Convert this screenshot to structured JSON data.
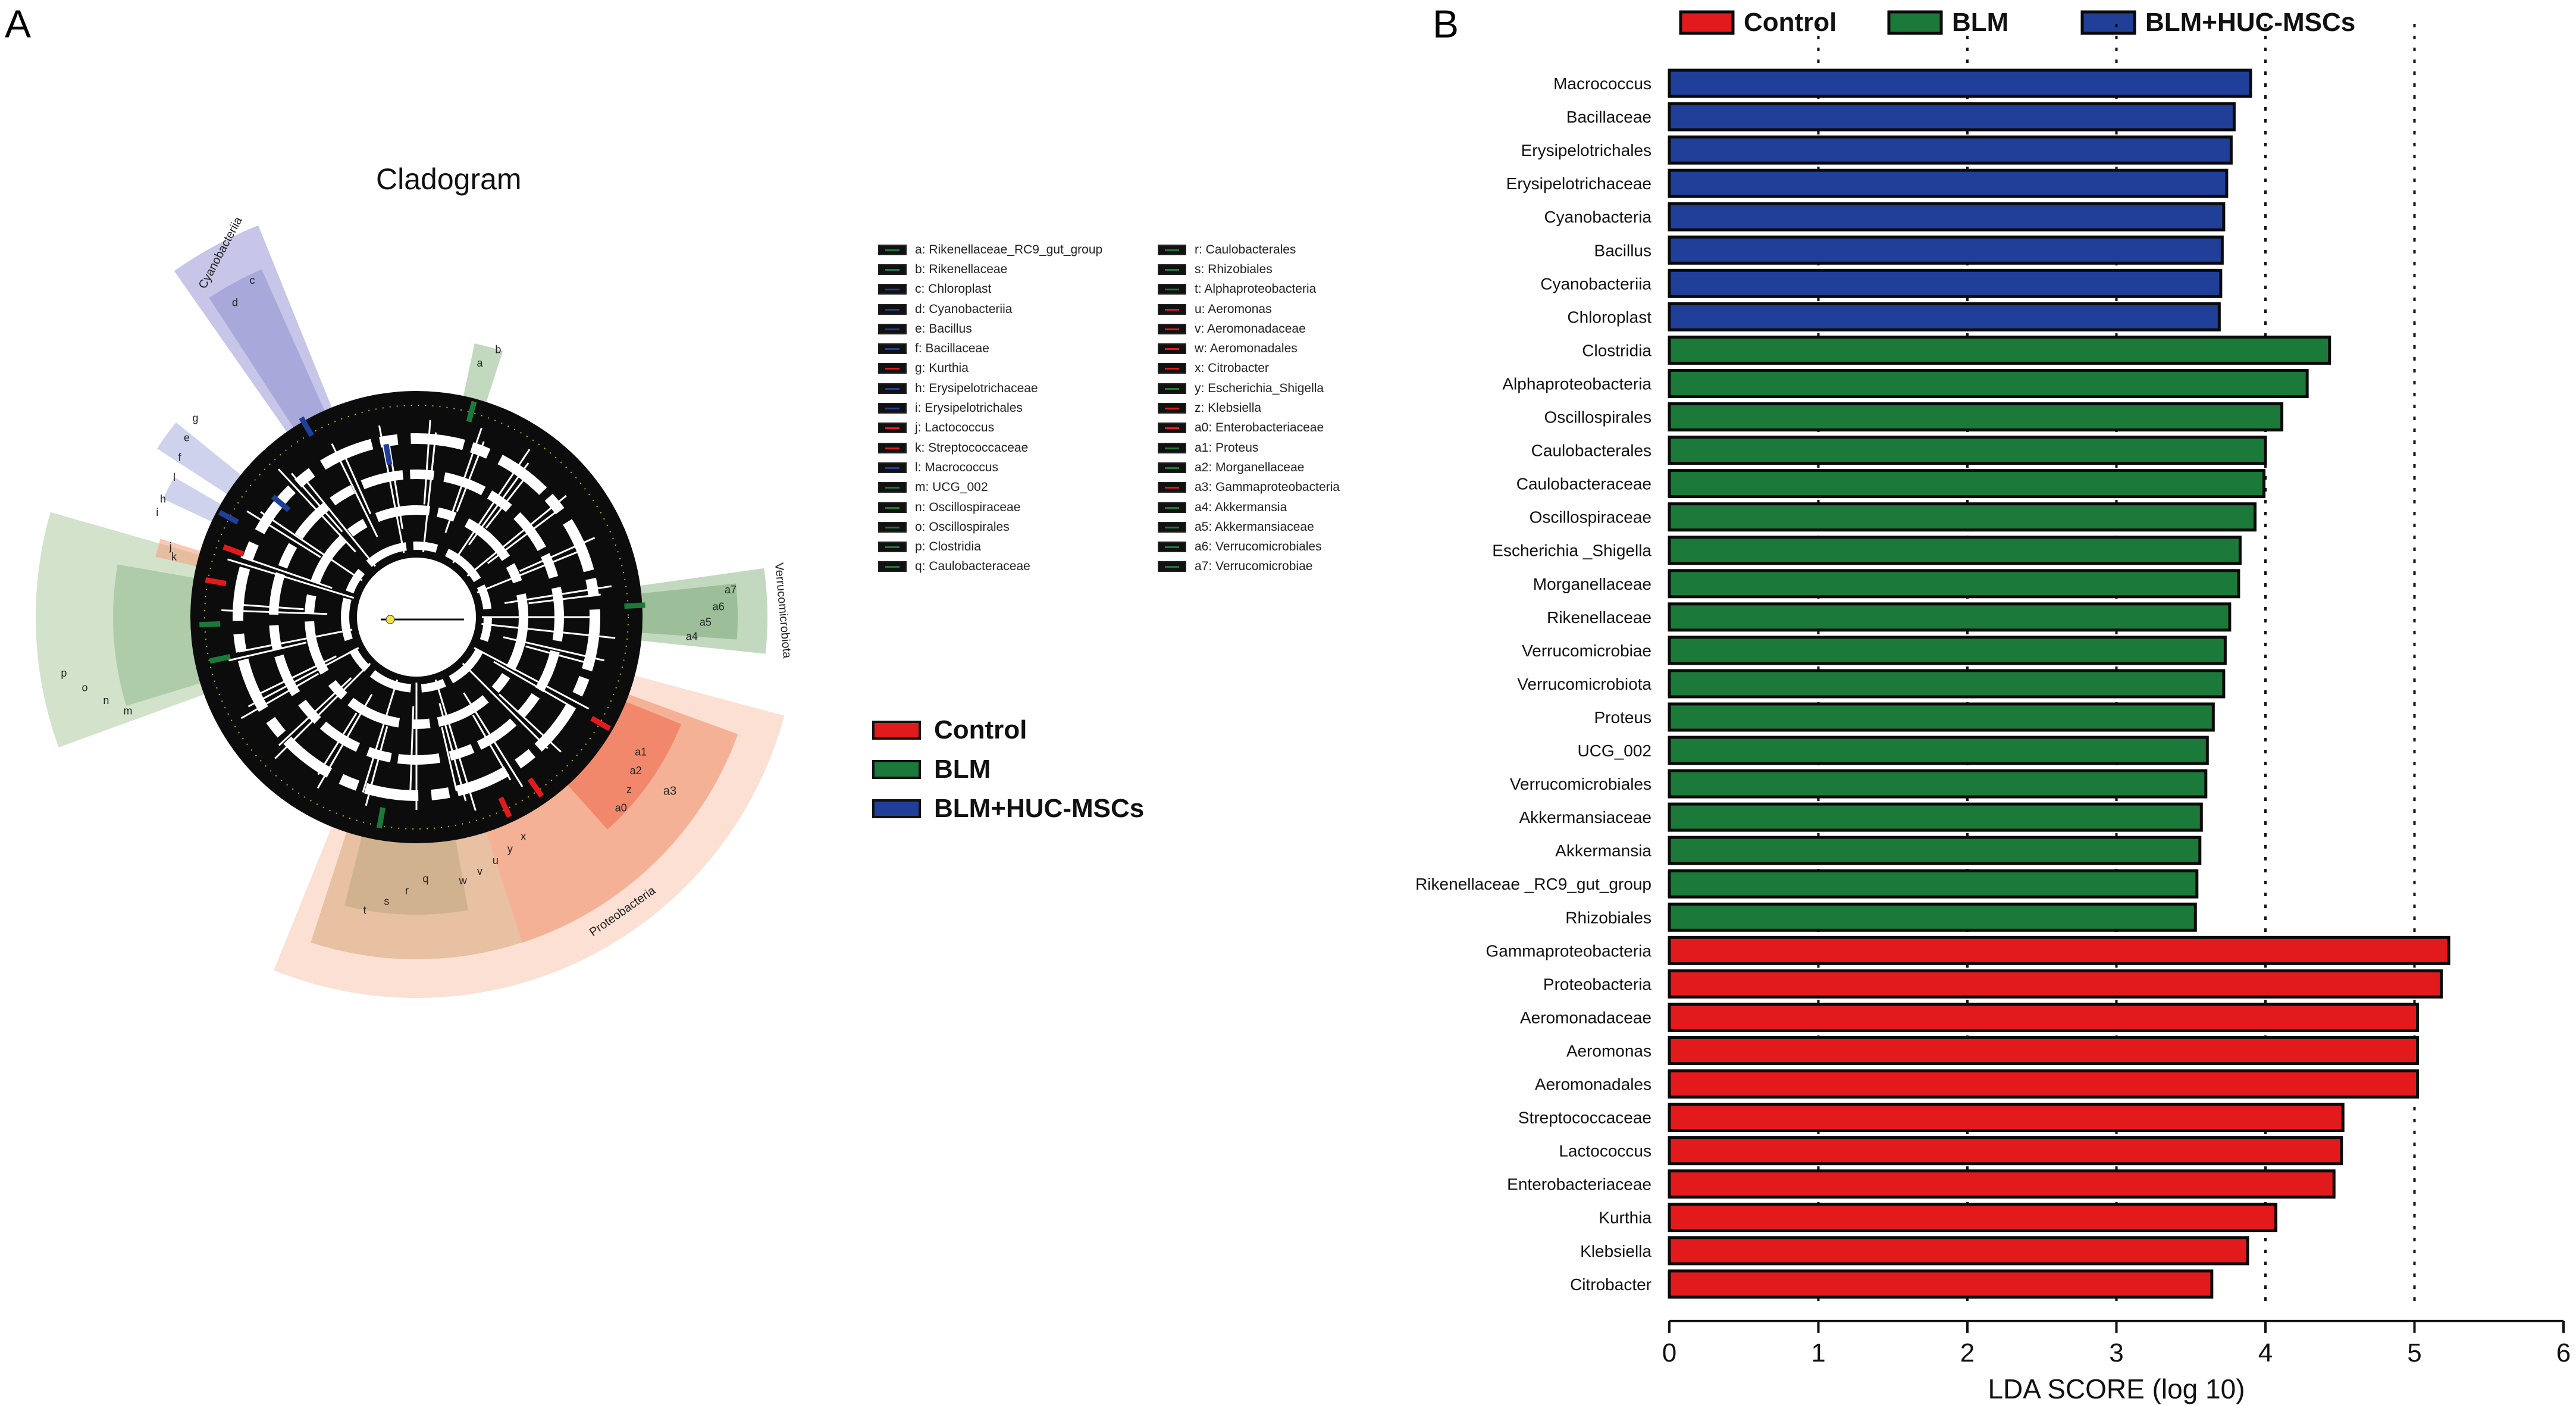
{
  "panels": {
    "a": "A",
    "b": "B"
  },
  "colors": {
    "control": "#e31a1c",
    "blm": "#1b7a3a",
    "huc": "#1f3f98"
  },
  "cladogram": {
    "title": "Cladogram",
    "clade_labels": {
      "cyanobacteria": "Cyanobacteriia",
      "proteobacteria": "Proteobacteria",
      "verrucomicrobiota": "Verrucomicrobiota"
    },
    "legend_left": [
      {
        "text": "a: Rikenellaceae_RC9_gut_group",
        "group": "blm"
      },
      {
        "text": "b: Rikenellaceae",
        "group": "blm"
      },
      {
        "text": "c: Chloroplast",
        "group": "huc"
      },
      {
        "text": "d: Cyanobacteriia",
        "group": "huc"
      },
      {
        "text": "e: Bacillus",
        "group": "huc"
      },
      {
        "text": "f: Bacillaceae",
        "group": "huc"
      },
      {
        "text": "g: Kurthia",
        "group": "control"
      },
      {
        "text": "h: Erysipelotrichaceae",
        "group": "huc"
      },
      {
        "text": "i: Erysipelotrichales",
        "group": "huc"
      },
      {
        "text": "j: Lactococcus",
        "group": "control"
      },
      {
        "text": "k: Streptococcaceae",
        "group": "control"
      },
      {
        "text": "l: Macrococcus",
        "group": "huc"
      },
      {
        "text": "m: UCG_002",
        "group": "blm"
      },
      {
        "text": "n: Oscillospiraceae",
        "group": "blm"
      },
      {
        "text": "o: Oscillospirales",
        "group": "blm"
      },
      {
        "text": "p: Clostridia",
        "group": "blm"
      },
      {
        "text": "q: Caulobacteraceae",
        "group": "blm"
      }
    ],
    "legend_right": [
      {
        "text": "r: Caulobacterales",
        "group": "blm"
      },
      {
        "text": "s: Rhizobiales",
        "group": "blm"
      },
      {
        "text": "t: Alphaproteobacteria",
        "group": "blm"
      },
      {
        "text": "u: Aeromonas",
        "group": "control"
      },
      {
        "text": "v: Aeromonadaceae",
        "group": "control"
      },
      {
        "text": "w: Aeromonadales",
        "group": "control"
      },
      {
        "text": "x: Citrobacter",
        "group": "control"
      },
      {
        "text": "y: Escherichia_Shigella",
        "group": "blm"
      },
      {
        "text": "z: Klebsiella",
        "group": "control"
      },
      {
        "text": "a0: Enterobacteriaceae",
        "group": "control"
      },
      {
        "text": "a1: Proteus",
        "group": "blm"
      },
      {
        "text": "a2: Morganellaceae",
        "group": "blm"
      },
      {
        "text": "a3: Gammaproteobacteria",
        "group": "control"
      },
      {
        "text": "a4: Akkermansia",
        "group": "blm"
      },
      {
        "text": "a5: Akkermansiaceae",
        "group": "blm"
      },
      {
        "text": "a6: Verrucomicrobiales",
        "group": "blm"
      },
      {
        "text": "a7: Verrucomicrobiae",
        "group": "blm"
      }
    ],
    "group_legend": [
      {
        "label": "Control",
        "group": "control"
      },
      {
        "label": "BLM",
        "group": "blm"
      },
      {
        "label": "BLM+HUC-MSCs",
        "group": "huc"
      }
    ],
    "marker_letters": {
      "cyan": [
        "d",
        "c"
      ],
      "upper_left": [
        "l",
        "f",
        "e",
        "g"
      ],
      "left_small": [
        "i",
        "h"
      ],
      "red_small": [
        "k",
        "j"
      ],
      "green_left": [
        "p",
        "o",
        "n",
        "m"
      ],
      "top_green": [
        "a",
        "b"
      ],
      "verruco": [
        "a7",
        "a6",
        "a5",
        "a4"
      ],
      "red_right": [
        "a1",
        "a2",
        "z",
        "a0"
      ],
      "proteo_inner": [
        "x",
        "y",
        "u",
        "v",
        "w"
      ],
      "proteo_big": "a3",
      "alpha": [
        "q",
        "r",
        "s",
        "t"
      ]
    }
  },
  "chart_data": {
    "type": "bar",
    "orientation": "horizontal",
    "xlabel": "LDA SCORE (log 10)",
    "xlim": [
      0,
      6
    ],
    "xticks": [
      "0",
      "1",
      "2",
      "3",
      "4",
      "5",
      "6"
    ],
    "dotted_gridlines_at": [
      1,
      2,
      3,
      4,
      5
    ],
    "legend": [
      {
        "label": "Control",
        "group": "control"
      },
      {
        "label": "BLM",
        "group": "blm"
      },
      {
        "label": "BLM+HUC-MSCs",
        "group": "huc"
      }
    ],
    "bars": [
      {
        "label": "Macrococcus",
        "value": 3.9,
        "group": "huc"
      },
      {
        "label": "Bacillaceae",
        "value": 3.79,
        "group": "huc"
      },
      {
        "label": "Erysipelotrichales",
        "value": 3.77,
        "group": "huc"
      },
      {
        "label": "Erysipelotrichaceae",
        "value": 3.74,
        "group": "huc"
      },
      {
        "label": "Cyanobacteria",
        "value": 3.72,
        "group": "huc"
      },
      {
        "label": "Bacillus",
        "value": 3.71,
        "group": "huc"
      },
      {
        "label": "Cyanobacteriia",
        "value": 3.7,
        "group": "huc"
      },
      {
        "label": "Chloroplast",
        "value": 3.69,
        "group": "huc"
      },
      {
        "label": "Clostridia",
        "value": 4.43,
        "group": "blm"
      },
      {
        "label": "Alphaproteobacteria",
        "value": 4.28,
        "group": "blm"
      },
      {
        "label": "Oscillospirales",
        "value": 4.11,
        "group": "blm"
      },
      {
        "label": "Caulobacterales",
        "value": 4.0,
        "group": "blm"
      },
      {
        "label": "Caulobacteraceae",
        "value": 3.99,
        "group": "blm"
      },
      {
        "label": "Oscillospiraceae",
        "value": 3.93,
        "group": "blm"
      },
      {
        "label": "Escherichia _Shigella",
        "value": 3.83,
        "group": "blm"
      },
      {
        "label": "Morganellaceae",
        "value": 3.82,
        "group": "blm"
      },
      {
        "label": "Rikenellaceae",
        "value": 3.76,
        "group": "blm"
      },
      {
        "label": "Verrucomicrobiae",
        "value": 3.73,
        "group": "blm"
      },
      {
        "label": "Verrucomicrobiota",
        "value": 3.72,
        "group": "blm"
      },
      {
        "label": "Proteus",
        "value": 3.65,
        "group": "blm"
      },
      {
        "label": "UCG_002",
        "value": 3.61,
        "group": "blm"
      },
      {
        "label": "Verrucomicrobiales",
        "value": 3.6,
        "group": "blm"
      },
      {
        "label": "Akkermansiaceae",
        "value": 3.57,
        "group": "blm"
      },
      {
        "label": "Akkermansia",
        "value": 3.56,
        "group": "blm"
      },
      {
        "label": "Rikenellaceae _RC9_gut_group",
        "value": 3.54,
        "group": "blm"
      },
      {
        "label": "Rhizobiales",
        "value": 3.53,
        "group": "blm"
      },
      {
        "label": "Gammaproteobacteria",
        "value": 5.23,
        "group": "control"
      },
      {
        "label": "Proteobacteria",
        "value": 5.18,
        "group": "control"
      },
      {
        "label": "Aeromonadaceae",
        "value": 5.02,
        "group": "control"
      },
      {
        "label": "Aeromonas",
        "value": 5.02,
        "group": "control"
      },
      {
        "label": "Aeromonadales",
        "value": 5.02,
        "group": "control"
      },
      {
        "label": "Streptococcaceae",
        "value": 4.52,
        "group": "control"
      },
      {
        "label": "Lactococcus",
        "value": 4.51,
        "group": "control"
      },
      {
        "label": "Enterobacteriaceae",
        "value": 4.46,
        "group": "control"
      },
      {
        "label": "Kurthia",
        "value": 4.07,
        "group": "control"
      },
      {
        "label": "Klebsiella",
        "value": 3.88,
        "group": "control"
      },
      {
        "label": "Citrobacter",
        "value": 3.64,
        "group": "control"
      }
    ]
  }
}
